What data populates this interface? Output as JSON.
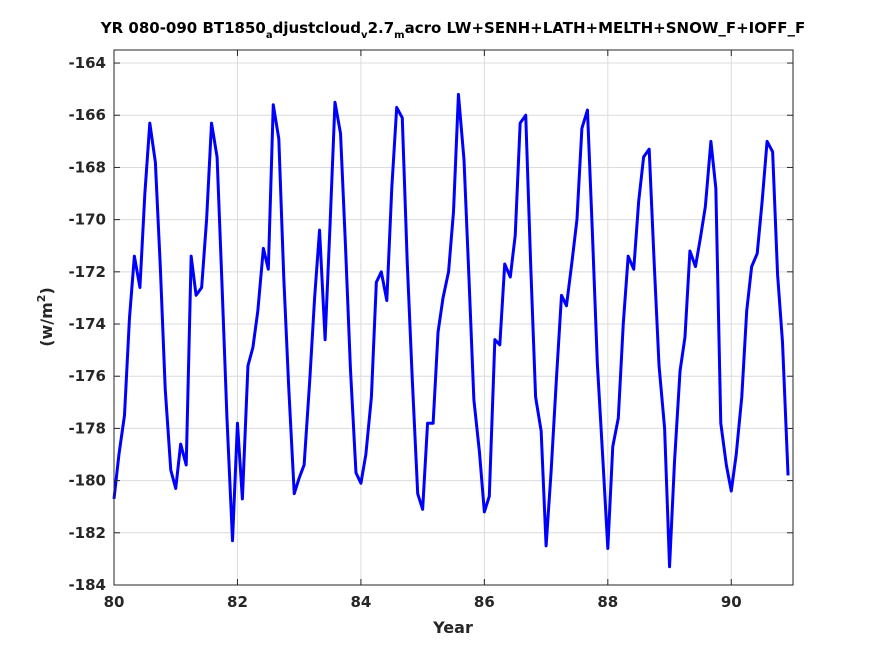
{
  "chart_data": {
    "type": "line",
    "title": {
      "part1": "YR 080-090 BT1850",
      "sub1": "a",
      "part2": "djustcloud",
      "sub2": "v",
      "part3": "2.7",
      "sub3": "m",
      "part4": "acro LW+SENH+LATH+MELTH+SNOW_F+IOFF_F"
    },
    "xlabel": "Year",
    "ylabel": {
      "base": "(w/m",
      "sup": "2",
      "close": ")"
    },
    "xlim": [
      80,
      91
    ],
    "ylim": [
      -184,
      -163.5
    ],
    "xticks": [
      80,
      82,
      84,
      86,
      88,
      90
    ],
    "yticks": [
      -184,
      -182,
      -180,
      -178,
      -176,
      -174,
      -172,
      -170,
      -168,
      -166,
      -164
    ],
    "grid": true,
    "colors": {
      "line": "#0000ff",
      "grid": "#dcdcdc",
      "axis": "#262626"
    },
    "series": [
      {
        "x": [
          80.0,
          80.08,
          80.17,
          80.25,
          80.33,
          80.42,
          80.5,
          80.58,
          80.67,
          80.75,
          80.83,
          80.92,
          81.0,
          81.08,
          81.17,
          81.25,
          81.33,
          81.42,
          81.5,
          81.58,
          81.67,
          81.75,
          81.83,
          81.92,
          82.0,
          82.08,
          82.17,
          82.25,
          82.33,
          82.42,
          82.5,
          82.58,
          82.67,
          82.75,
          82.83,
          82.92,
          83.0,
          83.08,
          83.17,
          83.25,
          83.33,
          83.42,
          83.5,
          83.58,
          83.67,
          83.75,
          83.83,
          83.92,
          84.0,
          84.08,
          84.17,
          84.25,
          84.33,
          84.42,
          84.5,
          84.58,
          84.67,
          84.75,
          84.83,
          84.92,
          85.0,
          85.08,
          85.17,
          85.25,
          85.33,
          85.42,
          85.5,
          85.58,
          85.67,
          85.75,
          85.83,
          85.92,
          86.0,
          86.08,
          86.17,
          86.25,
          86.33,
          86.42,
          86.5,
          86.58,
          86.67,
          86.75,
          86.83,
          86.92,
          87.0,
          87.08,
          87.17,
          87.25,
          87.33,
          87.42,
          87.5,
          87.58,
          87.67,
          87.75,
          87.83,
          87.92,
          88.0,
          88.08,
          88.17,
          88.25,
          88.33,
          88.42,
          88.5,
          88.58,
          88.67,
          88.75,
          88.83,
          88.92,
          89.0,
          89.08,
          89.17,
          89.25,
          89.33,
          89.42,
          89.5,
          89.58,
          89.67,
          89.75,
          89.83,
          89.92,
          90.0,
          90.08,
          90.17,
          90.25,
          90.33,
          90.42,
          90.5,
          90.58,
          90.67,
          90.75,
          90.83,
          90.92
        ],
        "y": [
          -180.7,
          -179.0,
          -177.5,
          -173.8,
          -171.4,
          -172.6,
          -169.0,
          -166.3,
          -167.8,
          -171.8,
          -176.5,
          -179.6,
          -180.3,
          -178.6,
          -179.4,
          -171.4,
          -172.9,
          -172.6,
          -170.0,
          -166.3,
          -167.6,
          -172.5,
          -177.6,
          -182.3,
          -177.8,
          -180.7,
          -175.6,
          -174.9,
          -173.5,
          -171.1,
          -171.9,
          -165.6,
          -166.9,
          -172.2,
          -176.4,
          -180.5,
          -179.9,
          -179.4,
          -176.2,
          -173.0,
          -170.4,
          -174.6,
          -170.2,
          -165.5,
          -166.7,
          -171.0,
          -175.7,
          -179.7,
          -180.1,
          -179.0,
          -176.8,
          -172.4,
          -172.0,
          -173.1,
          -168.8,
          -165.7,
          -166.1,
          -171.6,
          -176.0,
          -180.5,
          -181.1,
          -177.8,
          -177.8,
          -174.3,
          -173.0,
          -172.0,
          -169.7,
          -165.2,
          -167.7,
          -172.2,
          -176.9,
          -178.9,
          -181.2,
          -180.6,
          -174.6,
          -174.8,
          -171.7,
          -172.2,
          -170.6,
          -166.3,
          -166.0,
          -171.7,
          -176.8,
          -178.1,
          -182.5,
          -179.7,
          -176.0,
          -172.9,
          -173.3,
          -171.6,
          -170.0,
          -166.5,
          -165.8,
          -170.5,
          -175.5,
          -179.2,
          -182.6,
          -178.7,
          -177.6,
          -174.0,
          -171.4,
          -171.9,
          -169.3,
          -167.6,
          -167.3,
          -171.6,
          -175.6,
          -178.0,
          -183.3,
          -179.3,
          -175.8,
          -174.5,
          -171.2,
          -171.8,
          -170.7,
          -169.5,
          -167.0,
          -168.8,
          -177.8,
          -179.4,
          -180.4,
          -179.0,
          -176.8,
          -173.5,
          -171.8,
          -171.3,
          -169.3,
          -167.0,
          -167.4,
          -172.1,
          -174.7,
          -179.8
        ]
      }
    ]
  }
}
